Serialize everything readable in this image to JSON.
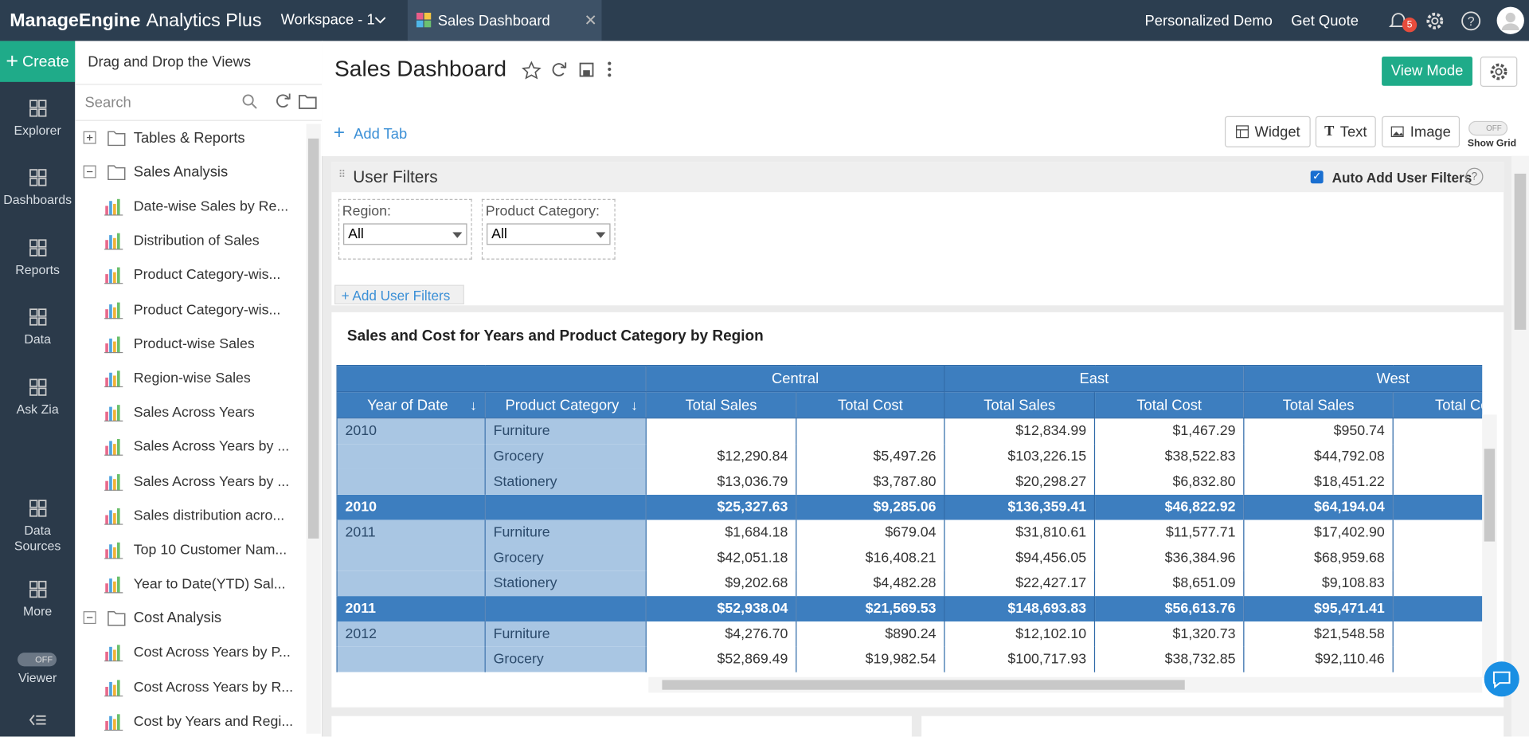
{
  "topbar": {
    "brand": "ManageEngine",
    "product": "Analytics Plus",
    "workspace": "Workspace - 1",
    "tab": "Sales Dashboard",
    "links": [
      "Personalized Demo",
      "Get Quote"
    ],
    "notifications": 5
  },
  "nav": {
    "create": "Create",
    "items": [
      "Explorer",
      "Dashboards",
      "Reports",
      "Data",
      "Ask Zia",
      "Data Sources",
      "More"
    ],
    "viewer_toggle": "OFF",
    "viewer": "Viewer"
  },
  "explorer": {
    "title": "Drag and Drop the Views",
    "search": "Search",
    "folders": [
      {
        "name": "Tables & Reports",
        "expanded": false,
        "items": []
      },
      {
        "name": "Sales Analysis",
        "expanded": true,
        "items": [
          "Date-wise Sales by Re...",
          "Distribution of Sales",
          "Product Category-wis...",
          "Product Category-wis...",
          "Product-wise Sales",
          "Region-wise Sales",
          "Sales Across Years",
          "Sales Across Years by ...",
          "Sales Across Years by ...",
          "Sales distribution acro...",
          "Top 10 Customer Nam...",
          "Year to Date(YTD) Sal..."
        ]
      },
      {
        "name": "Cost Analysis",
        "expanded": true,
        "items": [
          "Cost Across Years by P...",
          "Cost Across Years by R...",
          "Cost by Years and Regi..."
        ]
      }
    ]
  },
  "dashboard": {
    "title": "Sales Dashboard",
    "view_mode": "View Mode",
    "add_tab": "Add Tab",
    "tools": [
      "Widget",
      "Text",
      "Image"
    ],
    "grid_toggle": "OFF",
    "show_grid": "Show Grid"
  },
  "filters": {
    "title": "User Filters",
    "auto_add": "Auto Add User Filters",
    "fields": [
      {
        "label": "Region:",
        "value": "All"
      },
      {
        "label": "Product Category:",
        "value": "All"
      }
    ],
    "add": "Add User Filters"
  },
  "report": {
    "title": "Sales and Cost for Years and Product Category by Region",
    "regions": [
      "Central",
      "East",
      "West"
    ],
    "row_headers": [
      "Year of Date",
      "Product Category"
    ],
    "measures": [
      "Total Sales",
      "Total Cost"
    ],
    "rows": [
      {
        "year": "2010",
        "category": "Furniture",
        "cells": [
          null,
          null,
          "$12,834.99",
          "$1,467.29",
          "$950.74"
        ]
      },
      {
        "year": null,
        "category": "Grocery",
        "cells": [
          "$12,290.84",
          "$5,497.26",
          "$103,226.15",
          "$38,522.83",
          "$44,792.08"
        ]
      },
      {
        "year": null,
        "category": "Stationery",
        "cells": [
          "$13,036.79",
          "$3,787.80",
          "$20,298.27",
          "$6,832.80",
          "$18,451.22"
        ]
      },
      {
        "year": "2010",
        "category": null,
        "total": true,
        "cells": [
          "$25,327.63",
          "$9,285.06",
          "$136,359.41",
          "$46,822.92",
          "$64,194.04"
        ]
      },
      {
        "year": "2011",
        "category": "Furniture",
        "cells": [
          "$1,684.18",
          "$679.04",
          "$31,810.61",
          "$11,577.71",
          "$17,402.90"
        ]
      },
      {
        "year": null,
        "category": "Grocery",
        "cells": [
          "$42,051.18",
          "$16,408.21",
          "$94,456.05",
          "$36,384.96",
          "$68,959.68"
        ]
      },
      {
        "year": null,
        "category": "Stationery",
        "cells": [
          "$9,202.68",
          "$4,482.28",
          "$22,427.17",
          "$8,651.09",
          "$9,108.83"
        ]
      },
      {
        "year": "2011",
        "category": null,
        "total": true,
        "cells": [
          "$52,938.04",
          "$21,569.53",
          "$148,693.83",
          "$56,613.76",
          "$95,471.41"
        ]
      },
      {
        "year": "2012",
        "category": "Furniture",
        "cells": [
          "$4,276.70",
          "$890.24",
          "$12,102.10",
          "$1,320.73",
          "$21,548.58"
        ]
      },
      {
        "year": null,
        "category": "Grocery",
        "cells": [
          "$52,869.49",
          "$19,982.54",
          "$100,717.93",
          "$38,732.85",
          "$92,110.46"
        ]
      }
    ]
  }
}
